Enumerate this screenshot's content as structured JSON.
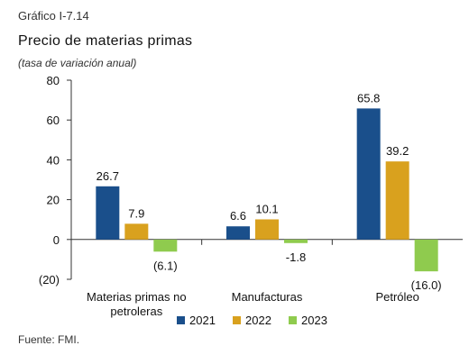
{
  "header": {
    "kicker": "Gráfico I-7.14",
    "title": "Precio de materias primas",
    "subtitle": "(tasa de variación anual)"
  },
  "source": "Fuente: FMI.",
  "chart_data": {
    "type": "bar",
    "categories": [
      [
        "Materias primas no",
        "petroleras"
      ],
      [
        "Manufacturas"
      ],
      [
        "Petróleo"
      ]
    ],
    "series": [
      {
        "name": "2021",
        "values": [
          26.7,
          6.6,
          65.8
        ],
        "labels": [
          "26.7",
          "6.6",
          "65.8"
        ],
        "color": "#1a4f8b"
      },
      {
        "name": "2022",
        "values": [
          7.9,
          10.1,
          39.2
        ],
        "labels": [
          "7.9",
          "10.1",
          "39.2"
        ],
        "color": "#d9a11e"
      },
      {
        "name": "2023",
        "values": [
          -6.1,
          -1.8,
          -16.0
        ],
        "labels": [
          "(6.1)",
          "-1.8",
          "(16.0)"
        ],
        "color": "#8fcb4e"
      }
    ],
    "ylim": [
      -20,
      80
    ],
    "yticks": [
      80,
      60,
      40,
      20,
      0,
      -20
    ],
    "ytick_labels": [
      "80",
      "60",
      "40",
      "20",
      "0",
      "(20)"
    ],
    "legend_position": "bottom"
  }
}
